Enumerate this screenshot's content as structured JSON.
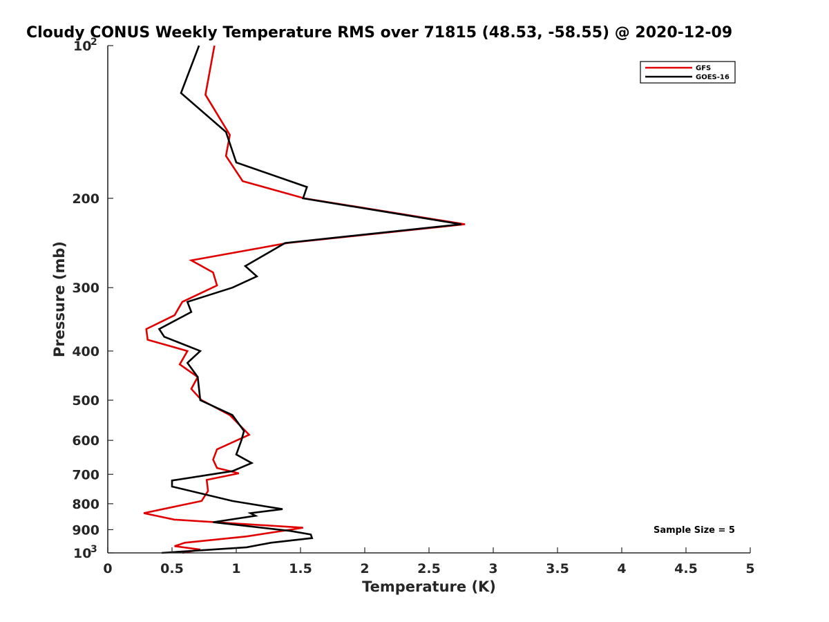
{
  "chart_data": {
    "type": "line",
    "title": "Cloudy CONUS Weekly Temperature RMS over 71815 (48.53, -58.55) @ 2020-12-09",
    "xlabel": "Temperature (K)",
    "ylabel": "Pressure (mb)",
    "xlim": [
      0,
      5
    ],
    "ylim": [
      100,
      1000
    ],
    "y_scale": "log",
    "y_reversed": true,
    "grid": false,
    "legend_position": "top-right",
    "x_ticks": [
      {
        "value": 0,
        "label": "0"
      },
      {
        "value": 0.5,
        "label": "0.5"
      },
      {
        "value": 1,
        "label": "1"
      },
      {
        "value": 1.5,
        "label": "1.5"
      },
      {
        "value": 2,
        "label": "2"
      },
      {
        "value": 2.5,
        "label": "2.5"
      },
      {
        "value": 3,
        "label": "3"
      },
      {
        "value": 3.5,
        "label": "3.5"
      },
      {
        "value": 4,
        "label": "4"
      },
      {
        "value": 4.5,
        "label": "4.5"
      },
      {
        "value": 5,
        "label": "5"
      }
    ],
    "y_ticks": [
      {
        "value": 100,
        "label": "10",
        "sup": "2"
      },
      {
        "value": 200,
        "label": "200"
      },
      {
        "value": 300,
        "label": "300"
      },
      {
        "value": 400,
        "label": "400"
      },
      {
        "value": 500,
        "label": "500"
      },
      {
        "value": 600,
        "label": "600"
      },
      {
        "value": 700,
        "label": "700"
      },
      {
        "value": 800,
        "label": "800"
      },
      {
        "value": 900,
        "label": "900"
      },
      {
        "value": 1000,
        "label": "10",
        "sup": "3"
      }
    ],
    "annotation": "Sample Size = 5",
    "series": [
      {
        "name": "GFS",
        "color": "#e00000",
        "points": [
          [
            0.83,
            100
          ],
          [
            0.76,
            125
          ],
          [
            0.95,
            150
          ],
          [
            0.92,
            165
          ],
          [
            1.05,
            185
          ],
          [
            1.53,
            200
          ],
          [
            2.78,
            225
          ],
          [
            1.4,
            245
          ],
          [
            0.65,
            265
          ],
          [
            0.82,
            280
          ],
          [
            0.85,
            297
          ],
          [
            0.58,
            320
          ],
          [
            0.52,
            340
          ],
          [
            0.3,
            362
          ],
          [
            0.31,
            380
          ],
          [
            0.62,
            400
          ],
          [
            0.56,
            425
          ],
          [
            0.7,
            450
          ],
          [
            0.65,
            475
          ],
          [
            0.73,
            500
          ],
          [
            0.95,
            535
          ],
          [
            1.1,
            585
          ],
          [
            0.85,
            625
          ],
          [
            0.82,
            655
          ],
          [
            0.85,
            680
          ],
          [
            1.02,
            697
          ],
          [
            0.77,
            718
          ],
          [
            0.78,
            755
          ],
          [
            0.73,
            790
          ],
          [
            0.28,
            835
          ],
          [
            0.52,
            860
          ],
          [
            1.52,
            892
          ],
          [
            1.08,
            928
          ],
          [
            0.6,
            955
          ],
          [
            0.52,
            970
          ],
          [
            0.72,
            985
          ],
          [
            0.58,
            1000
          ]
        ]
      },
      {
        "name": "GOES-16",
        "color": "#000000",
        "points": [
          [
            0.71,
            100
          ],
          [
            0.57,
            124
          ],
          [
            0.92,
            148
          ],
          [
            1.0,
            170
          ],
          [
            1.55,
            190
          ],
          [
            1.52,
            200
          ],
          [
            2.75,
            225
          ],
          [
            1.38,
            245
          ],
          [
            1.07,
            272
          ],
          [
            1.16,
            285
          ],
          [
            0.97,
            300
          ],
          [
            0.62,
            320
          ],
          [
            0.65,
            335
          ],
          [
            0.4,
            362
          ],
          [
            0.44,
            375
          ],
          [
            0.72,
            400
          ],
          [
            0.62,
            422
          ],
          [
            0.7,
            450
          ],
          [
            0.71,
            475
          ],
          [
            0.72,
            500
          ],
          [
            0.97,
            535
          ],
          [
            1.06,
            575
          ],
          [
            1.04,
            600
          ],
          [
            1.0,
            640
          ],
          [
            1.12,
            665
          ],
          [
            0.97,
            690
          ],
          [
            0.5,
            720
          ],
          [
            0.5,
            740
          ],
          [
            0.97,
            790
          ],
          [
            1.36,
            820
          ],
          [
            1.11,
            835
          ],
          [
            1.15,
            845
          ],
          [
            0.82,
            870
          ],
          [
            1.42,
            905
          ],
          [
            1.58,
            920
          ],
          [
            1.59,
            935
          ],
          [
            1.27,
            955
          ],
          [
            1.08,
            975
          ],
          [
            0.42,
            1000
          ]
        ]
      }
    ]
  }
}
